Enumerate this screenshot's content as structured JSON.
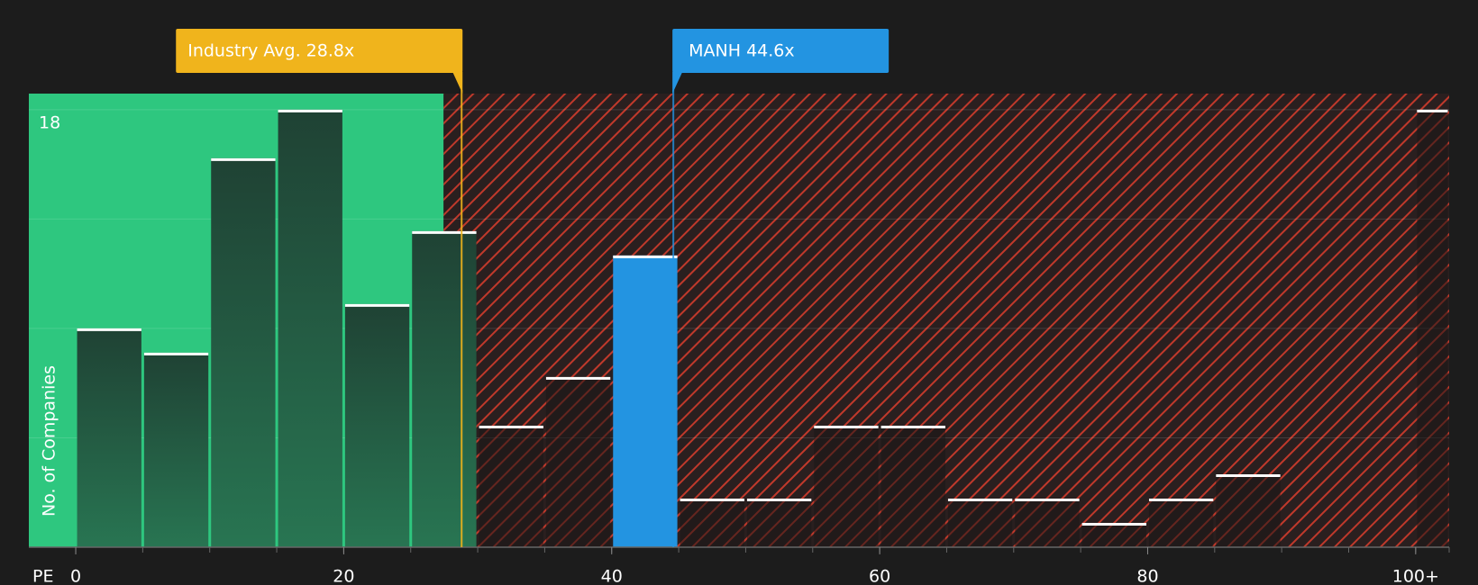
{
  "chart_data": {
    "type": "histogram",
    "bins": [
      0,
      5,
      10,
      15,
      20,
      25,
      30,
      35,
      40,
      45,
      50,
      55,
      60,
      65,
      70,
      75,
      80,
      85,
      90,
      95,
      100,
      102.5
    ],
    "values": [
      9,
      8,
      16,
      18,
      10,
      13,
      5,
      7,
      12,
      2,
      2,
      5,
      5,
      2,
      2,
      1,
      2,
      3,
      0,
      0,
      18
    ],
    "xlabel": "PE",
    "ylabel": "No. of Companies",
    "xlim": [
      -3.5,
      102.5
    ],
    "ylim": [
      0,
      18.66
    ],
    "xticks": [
      0,
      20,
      40,
      60,
      80,
      {
        "value": 100,
        "label": "100+"
      }
    ],
    "yticks": [
      18
    ],
    "annotations": [
      {
        "value": 28.8,
        "label": "Industry Avg. 28.8x",
        "color": "#f0b41c"
      },
      {
        "value": 44.6,
        "label": "MANH 44.6x",
        "color": "#2394e1"
      }
    ],
    "good_color": "#2ec77f",
    "bad_color": "#c0392b",
    "grid": true
  }
}
